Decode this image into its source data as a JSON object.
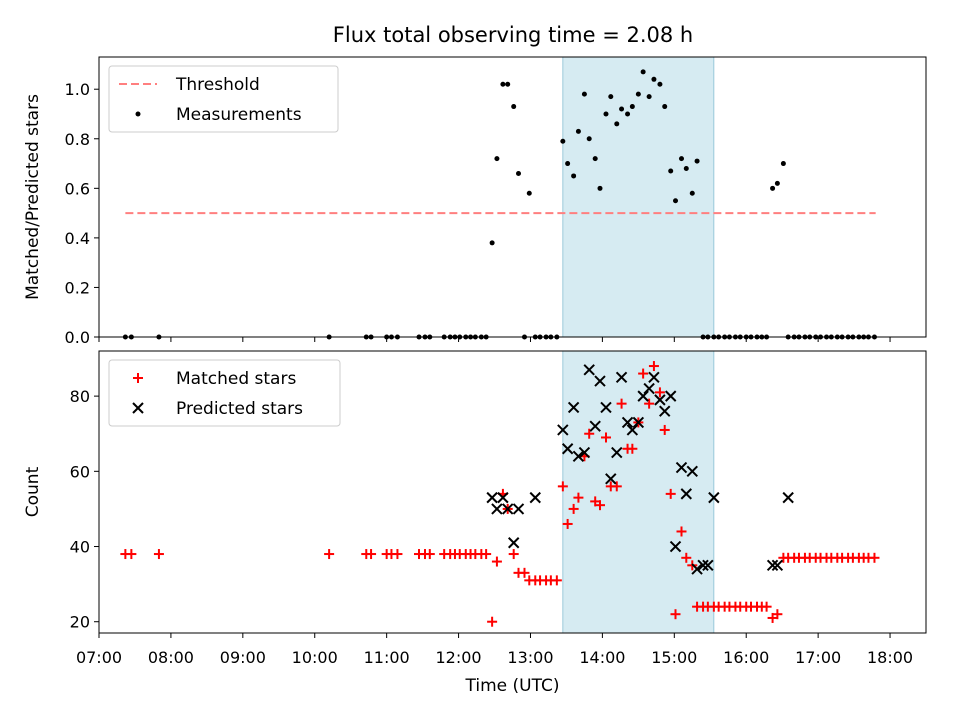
{
  "chart_data": [
    {
      "type": "scatter",
      "title": "Flux total observing time = 2.08 h",
      "xlabel": "",
      "ylabel": "Matched/Predicted stars",
      "xlim": [
        "07:00",
        "18:30"
      ],
      "ylim": [
        0,
        1.13
      ],
      "yticks": [
        "0.0",
        "0.2",
        "0.4",
        "0.6",
        "0.8",
        "1.0"
      ],
      "highlight_span": [
        "13:27",
        "15:33"
      ],
      "highlight_color": "#add8e6",
      "legend_position": "upper left",
      "series": [
        {
          "name": "Threshold",
          "kind": "dashed-line",
          "color": "#ff7f7f",
          "x": [
            "07:22",
            "17:48"
          ],
          "y": [
            0.5,
            0.5
          ]
        },
        {
          "name": "Measurements",
          "kind": "dots",
          "color": "#000000",
          "x": [
            "07:22",
            "07:27",
            "07:50",
            "10:12",
            "10:43",
            "10:47",
            "11:00",
            "11:04",
            "11:09",
            "11:27",
            "11:32",
            "11:36",
            "11:48",
            "11:53",
            "11:57",
            "12:01",
            "12:06",
            "12:10",
            "12:14",
            "12:19",
            "12:23",
            "12:28",
            "12:32",
            "12:37",
            "12:41",
            "12:46",
            "12:50",
            "12:55",
            "12:59",
            "13:04",
            "13:08",
            "13:13",
            "13:17",
            "13:22",
            "13:27",
            "13:31",
            "13:36",
            "13:40",
            "13:45",
            "13:49",
            "13:54",
            "13:58",
            "14:03",
            "14:07",
            "14:12",
            "14:16",
            "14:21",
            "14:25",
            "14:30",
            "14:34",
            "14:39",
            "14:43",
            "14:48",
            "14:52",
            "14:57",
            "15:01",
            "15:06",
            "15:10",
            "15:15",
            "15:19",
            "15:24",
            "15:28",
            "15:33",
            "15:37",
            "15:42",
            "15:46",
            "15:51",
            "15:55",
            "16:00",
            "16:04",
            "16:09",
            "16:13",
            "16:17",
            "16:22",
            "16:26",
            "16:31",
            "16:35",
            "16:40",
            "16:44",
            "16:49",
            "16:53",
            "16:58",
            "17:02",
            "17:07",
            "17:11",
            "17:16",
            "17:20",
            "17:25",
            "17:29",
            "17:34",
            "17:38",
            "17:42",
            "17:47"
          ],
          "y": [
            0.0,
            0.0,
            0.0,
            0.0,
            0.0,
            0.0,
            0.0,
            0.0,
            0.0,
            0.0,
            0.0,
            0.0,
            0.0,
            0.0,
            0.0,
            0.0,
            0.0,
            0.0,
            0.0,
            0.0,
            0.0,
            0.38,
            0.72,
            1.02,
            1.02,
            0.93,
            0.66,
            0.0,
            0.58,
            0.0,
            0.0,
            0.0,
            0.0,
            0.0,
            0.79,
            0.7,
            0.65,
            0.83,
            0.98,
            0.8,
            0.72,
            0.6,
            0.9,
            0.97,
            0.86,
            0.92,
            0.9,
            0.93,
            0.98,
            1.07,
            0.97,
            1.04,
            1.02,
            0.93,
            0.67,
            0.55,
            0.72,
            0.68,
            0.58,
            0.71,
            0.0,
            0.0,
            0.0,
            0.0,
            0.0,
            0.0,
            0.0,
            0.0,
            0.0,
            0.0,
            0.0,
            0.0,
            0.0,
            0.6,
            0.62,
            0.7,
            0.0,
            0.0,
            0.0,
            0.0,
            0.0,
            0.0,
            0.0,
            0.0,
            0.0,
            0.0,
            0.0,
            0.0,
            0.0,
            0.0,
            0.0,
            0.0,
            0.0
          ]
        }
      ]
    },
    {
      "type": "scatter",
      "title": "",
      "xlabel": "Time (UTC)",
      "ylabel": "Count",
      "xlim": [
        "07:00",
        "18:30"
      ],
      "ylim": [
        17,
        92
      ],
      "yticks": [
        "20",
        "40",
        "60",
        "80"
      ],
      "xticks": [
        "07:00",
        "08:00",
        "09:00",
        "10:00",
        "11:00",
        "12:00",
        "13:00",
        "14:00",
        "15:00",
        "16:00",
        "17:00",
        "18:00"
      ],
      "highlight_span": [
        "13:27",
        "15:33"
      ],
      "highlight_color": "#add8e6",
      "legend_position": "upper left",
      "series": [
        {
          "name": "Matched stars",
          "marker": "+",
          "color": "#ff0000",
          "x": [
            "07:22",
            "07:27",
            "07:50",
            "10:12",
            "10:43",
            "10:47",
            "11:00",
            "11:04",
            "11:09",
            "11:27",
            "11:32",
            "11:36",
            "11:48",
            "11:53",
            "11:57",
            "12:01",
            "12:06",
            "12:10",
            "12:14",
            "12:19",
            "12:23",
            "12:28",
            "12:32",
            "12:37",
            "12:41",
            "12:46",
            "12:50",
            "12:55",
            "12:59",
            "13:04",
            "13:08",
            "13:13",
            "13:17",
            "13:22",
            "13:27",
            "13:31",
            "13:36",
            "13:40",
            "13:45",
            "13:49",
            "13:54",
            "13:58",
            "14:03",
            "14:07",
            "14:12",
            "14:16",
            "14:21",
            "14:25",
            "14:30",
            "14:34",
            "14:39",
            "14:43",
            "14:48",
            "14:52",
            "14:57",
            "15:01",
            "15:06",
            "15:10",
            "15:15",
            "15:19",
            "15:24",
            "15:28",
            "15:33",
            "15:37",
            "15:42",
            "15:46",
            "15:51",
            "15:55",
            "16:00",
            "16:04",
            "16:09",
            "16:13",
            "16:17",
            "16:22",
            "16:26",
            "16:31",
            "16:35",
            "16:40",
            "16:44",
            "16:49",
            "16:53",
            "16:58",
            "17:02",
            "17:07",
            "17:11",
            "17:16",
            "17:20",
            "17:25",
            "17:29",
            "17:34",
            "17:38",
            "17:42",
            "17:47"
          ],
          "y": [
            38,
            38,
            38,
            38,
            38,
            38,
            38,
            38,
            38,
            38,
            38,
            38,
            38,
            38,
            38,
            38,
            38,
            38,
            38,
            38,
            38,
            20,
            36,
            54,
            50,
            38,
            33,
            33,
            31,
            31,
            31,
            31,
            31,
            31,
            56,
            46,
            50,
            53,
            64,
            70,
            52,
            51,
            69,
            56,
            56,
            78,
            66,
            66,
            73,
            86,
            78,
            88,
            81,
            71,
            54,
            22,
            44,
            37,
            35,
            24,
            24,
            24,
            24,
            24,
            24,
            24,
            24,
            24,
            24,
            24,
            24,
            24,
            24,
            21,
            22,
            37,
            37,
            37,
            37,
            37,
            37,
            37,
            37,
            37,
            37,
            37,
            37,
            37,
            37,
            37,
            37,
            37,
            37
          ]
        },
        {
          "name": "Predicted stars",
          "marker": "x",
          "color": "#000000",
          "x": [
            "12:28",
            "12:32",
            "12:37",
            "12:41",
            "12:46",
            "12:50",
            "13:04",
            "13:27",
            "13:31",
            "13:36",
            "13:40",
            "13:45",
            "13:49",
            "13:54",
            "13:58",
            "14:03",
            "14:07",
            "14:12",
            "14:16",
            "14:21",
            "14:25",
            "14:30",
            "14:34",
            "14:39",
            "14:43",
            "14:48",
            "14:52",
            "14:57",
            "15:01",
            "15:06",
            "15:10",
            "15:15",
            "15:19",
            "15:24",
            "15:28",
            "15:33",
            "16:22",
            "16:26",
            "16:35"
          ],
          "y": [
            53,
            50,
            53,
            50,
            41,
            50,
            53,
            71,
            66,
            77,
            64,
            65,
            87,
            72,
            84,
            77,
            58,
            65,
            85,
            73,
            71,
            73,
            80,
            82,
            85,
            79,
            76,
            80,
            40,
            61,
            54,
            60,
            34,
            35,
            35,
            53,
            35,
            35,
            53
          ]
        }
      ]
    }
  ]
}
